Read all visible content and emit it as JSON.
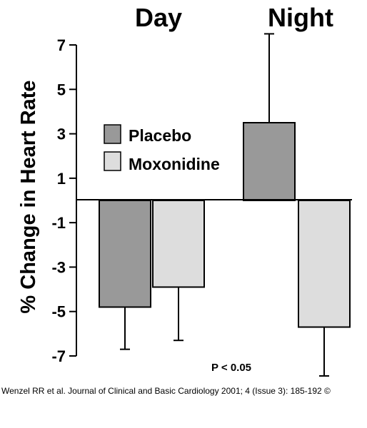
{
  "chart_data": {
    "type": "bar",
    "categories": [
      "Day",
      "Night"
    ],
    "series": [
      {
        "name": "Placebo",
        "values": [
          -4.8,
          3.5
        ],
        "errors": [
          1.9,
          4.0
        ],
        "color": "#999999"
      },
      {
        "name": "Moxonidine",
        "values": [
          -3.9,
          -5.7
        ],
        "errors": [
          2.4,
          2.2
        ],
        "color": "#dddddd"
      }
    ],
    "ylabel": "% Change in Heart Rate",
    "ylim": [
      -7,
      7
    ],
    "yticks": [
      "7",
      "5",
      "3",
      "1",
      "-1",
      "-3",
      "-5",
      "-7"
    ],
    "annotation": "P < 0.05",
    "legend_position": "left-center",
    "grid": false
  },
  "citation": "Wenzel RR et al. Journal of Clinical and Basic Cardiology 2001; 4 (Issue 3): 185-192 ©"
}
